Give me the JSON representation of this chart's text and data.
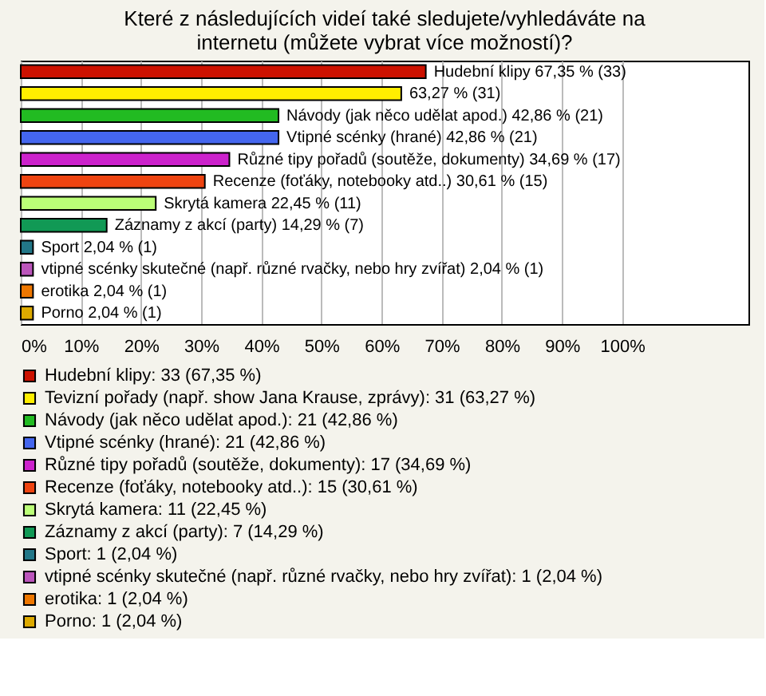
{
  "chart_data": {
    "type": "bar",
    "orientation": "horizontal",
    "title": "Které z následujících videí také sledujete/vyhledáváte na internetu (můžete vybrat více možností)?",
    "categories": [
      null,
      null,
      null,
      null,
      null,
      null,
      null,
      null,
      null,
      null,
      null,
      null
    ],
    "series": [
      {
        "name": "Hudební klipy: 33 (67,35 %)",
        "color": "#cc1100",
        "values": [
          67.35,
          null,
          null,
          null,
          null,
          null,
          null,
          null,
          null,
          null,
          null,
          null
        ],
        "value_labels": [
          "Hudební klipy 67,35 % (33)",
          null,
          null,
          null,
          null,
          null,
          null,
          null,
          null,
          null,
          null,
          null
        ]
      },
      {
        "name": "Tevizní pořady (např. show Jana Krause, zprávy): 31 (63,27 %)",
        "color": "#ffee00",
        "values": [
          null,
          63.27,
          null,
          null,
          null,
          null,
          null,
          null,
          null,
          null,
          null,
          null
        ],
        "value_labels": [
          null,
          "63,27 % (31)",
          null,
          null,
          null,
          null,
          null,
          null,
          null,
          null,
          null,
          null
        ]
      },
      {
        "name": "Návody (jak něco udělat apod.): 21 (42,86 %)",
        "color": "#22bb22",
        "values": [
          null,
          null,
          42.86,
          null,
          null,
          null,
          null,
          null,
          null,
          null,
          null,
          null
        ],
        "value_labels": [
          null,
          null,
          "Návody (jak něco udělat apod.) 42,86 % (21)",
          null,
          null,
          null,
          null,
          null,
          null,
          null,
          null,
          null
        ]
      },
      {
        "name": "Vtipné scénky (hrané): 21 (42,86 %)",
        "color": "#4466ee",
        "values": [
          null,
          null,
          null,
          42.86,
          null,
          null,
          null,
          null,
          null,
          null,
          null,
          null
        ],
        "value_labels": [
          null,
          null,
          null,
          "Vtipné scénky (hrané) 42,86 % (21)",
          null,
          null,
          null,
          null,
          null,
          null,
          null,
          null
        ]
      },
      {
        "name": "Různé tipy pořadů (soutěže, dokumenty): 17 (34,69 %)",
        "color": "#cc22cc",
        "values": [
          null,
          null,
          null,
          null,
          34.69,
          null,
          null,
          null,
          null,
          null,
          null,
          null
        ],
        "value_labels": [
          null,
          null,
          null,
          null,
          "Různé tipy pořadů (soutěže, dokumenty) 34,69 % (17)",
          null,
          null,
          null,
          null,
          null,
          null,
          null
        ]
      },
      {
        "name": "Recenze (foťáky, notebooky atd..): 15 (30,61 %)",
        "color": "#ee4411",
        "values": [
          null,
          null,
          null,
          null,
          null,
          30.61,
          null,
          null,
          null,
          null,
          null,
          null
        ],
        "value_labels": [
          null,
          null,
          null,
          null,
          null,
          "Recenze (foťáky, notebooky atd..) 30,61 % (15)",
          null,
          null,
          null,
          null,
          null,
          null
        ]
      },
      {
        "name": "Skrytá kamera: 11 (22,45 %)",
        "color": "#bbff77",
        "values": [
          null,
          null,
          null,
          null,
          null,
          null,
          22.45,
          null,
          null,
          null,
          null,
          null
        ],
        "value_labels": [
          null,
          null,
          null,
          null,
          null,
          null,
          "Skrytá kamera 22,45 % (11)",
          null,
          null,
          null,
          null,
          null
        ]
      },
      {
        "name": "Záznamy z akcí (party): 7 (14,29 %)",
        "color": "#119955",
        "values": [
          null,
          null,
          null,
          null,
          null,
          null,
          null,
          14.29,
          null,
          null,
          null,
          null
        ],
        "value_labels": [
          null,
          null,
          null,
          null,
          null,
          null,
          null,
          "Záznamy z akcí (party) 14,29 % (7)",
          null,
          null,
          null,
          null
        ]
      },
      {
        "name": "Sport: 1 (2,04 %)",
        "color": "#227788",
        "values": [
          null,
          null,
          null,
          null,
          null,
          null,
          null,
          null,
          2.04,
          null,
          null,
          null
        ],
        "value_labels": [
          null,
          null,
          null,
          null,
          null,
          null,
          null,
          null,
          "Sport 2,04 % (1)",
          null,
          null,
          null
        ]
      },
      {
        "name": "vtipné scénky skutečné (např. různé rvačky, nebo hry zvířat): 1 (2,04 %)",
        "color": "#bb55bb",
        "values": [
          null,
          null,
          null,
          null,
          null,
          null,
          null,
          null,
          null,
          2.04,
          null,
          null
        ],
        "value_labels": [
          null,
          null,
          null,
          null,
          null,
          null,
          null,
          null,
          null,
          "vtipné scénky skutečné (např. různé rvačky, nebo hry zvířat) 2,04 % (1)",
          null,
          null
        ]
      },
      {
        "name": "erotika: 1 (2,04 %)",
        "color": "#ee7700",
        "values": [
          null,
          null,
          null,
          null,
          null,
          null,
          null,
          null,
          null,
          null,
          2.04,
          null
        ],
        "value_labels": [
          null,
          null,
          null,
          null,
          null,
          null,
          null,
          null,
          null,
          null,
          "erotika 2,04 % (1)",
          null
        ]
      },
      {
        "name": "Porno: 1 (2,04 %)",
        "color": "#ddaa00",
        "values": [
          null,
          null,
          null,
          null,
          null,
          null,
          null,
          null,
          null,
          null,
          null,
          2.04
        ],
        "value_labels": [
          null,
          null,
          null,
          null,
          null,
          null,
          null,
          null,
          null,
          null,
          null,
          "Porno 2,04 % (1)"
        ]
      }
    ],
    "xlim": [
      0,
      121
    ],
    "xticks": [
      {
        "value": 0,
        "label": "0%"
      },
      {
        "value": 10,
        "label": "10%"
      },
      {
        "value": 20,
        "label": "20%"
      },
      {
        "value": 30,
        "label": "30%"
      },
      {
        "value": 40,
        "label": "40%"
      },
      {
        "value": 50,
        "label": "50%"
      },
      {
        "value": 60,
        "label": "60%"
      },
      {
        "value": 70,
        "label": "70%"
      },
      {
        "value": 80,
        "label": "80%"
      },
      {
        "value": 90,
        "label": "90%"
      },
      {
        "value": 100,
        "label": "100%"
      }
    ],
    "grid": "x",
    "legend": "bottom",
    "tick_labels": "x"
  }
}
